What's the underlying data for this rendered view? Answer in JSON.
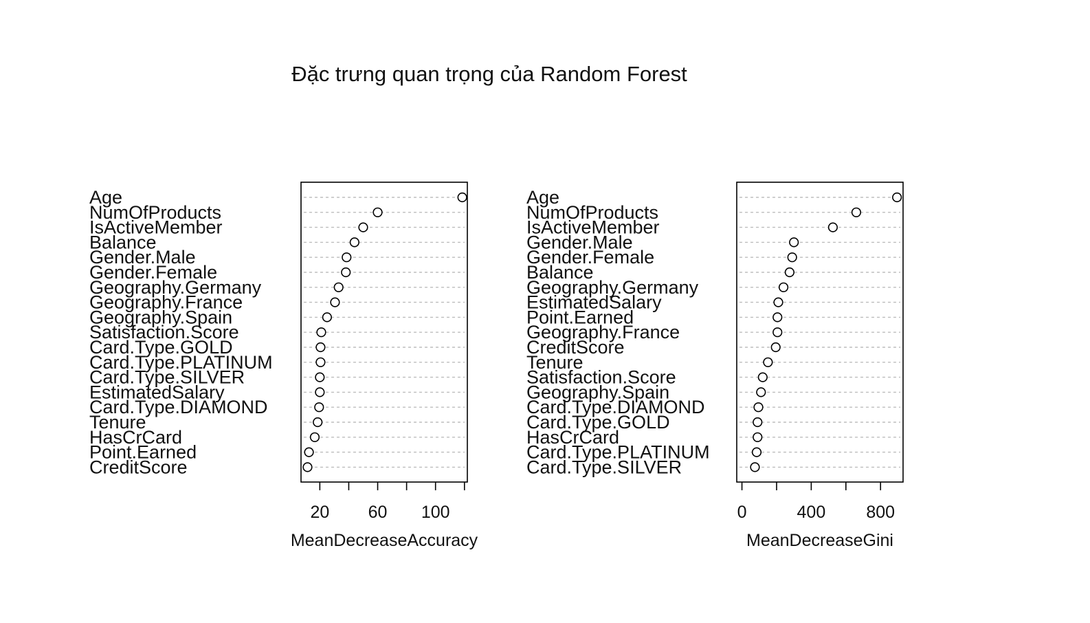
{
  "figure": {
    "title": "Đặc trưng quan trọng của Random Forest"
  },
  "chart_data": [
    {
      "type": "scatter",
      "subtype": "dotchart",
      "xlabel": "MeanDecreaseAccuracy",
      "ylabel": "",
      "xlim": [
        7,
        122
      ],
      "xticks": [
        20,
        40,
        60,
        80,
        100,
        120
      ],
      "xtick_labels": [
        "20",
        "",
        "60",
        "",
        "100",
        ""
      ],
      "grid": "dotted horizontal",
      "categories": [
        "Age",
        "NumOfProducts",
        "IsActiveMember",
        "Balance",
        "Gender.Male",
        "Gender.Female",
        "Geography.Germany",
        "Geography.France",
        "Geography.Spain",
        "Satisfaction.Score",
        "Card.Type.GOLD",
        "Card.Type.PLATINUM",
        "Card.Type.SILVER",
        "EstimatedSalary",
        "Card.Type.DIAMOND",
        "Tenure",
        "HasCrCard",
        "Point.Earned",
        "CreditScore"
      ],
      "values": [
        118.5,
        60,
        50,
        44,
        38.5,
        38,
        33,
        30.5,
        25,
        21,
        20.5,
        20.5,
        20,
        20,
        19.5,
        18.5,
        16.5,
        12.5,
        11.5
      ]
    },
    {
      "type": "scatter",
      "subtype": "dotchart",
      "xlabel": "MeanDecreaseGini",
      "ylabel": "",
      "xlim": [
        -30,
        930
      ],
      "xticks": [
        0,
        200,
        400,
        600,
        800
      ],
      "xtick_labels": [
        "0",
        "",
        "400",
        "",
        "800"
      ],
      "grid": "dotted horizontal",
      "categories": [
        "Age",
        "NumOfProducts",
        "IsActiveMember",
        "Gender.Male",
        "Gender.Female",
        "Balance",
        "Geography.Germany",
        "EstimatedSalary",
        "Point.Earned",
        "Geography.France",
        "CreditScore",
        "Tenure",
        "Satisfaction.Score",
        "Geography.Spain",
        "Card.Type.DIAMOND",
        "Card.Type.GOLD",
        "HasCrCard",
        "Card.Type.PLATINUM",
        "Card.Type.SILVER"
      ],
      "values": [
        895,
        660,
        525,
        300,
        290,
        275,
        240,
        210,
        205,
        205,
        195,
        150,
        120,
        110,
        95,
        90,
        90,
        85,
        75
      ]
    }
  ]
}
